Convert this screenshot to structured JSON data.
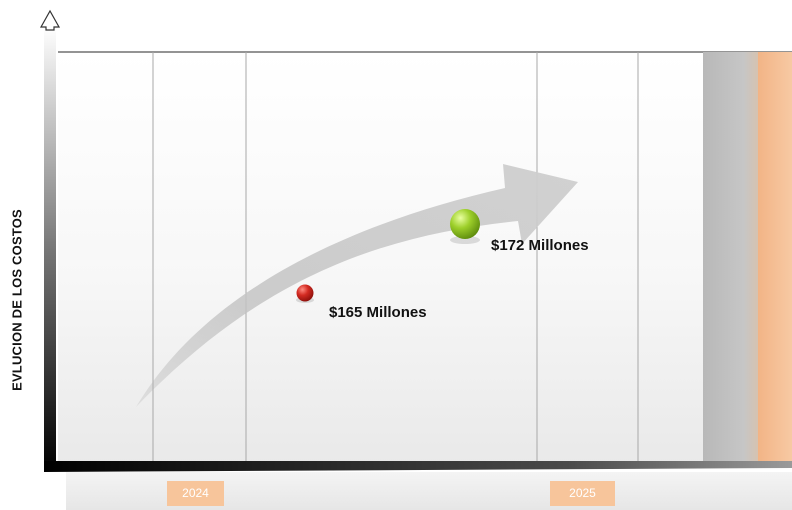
{
  "diagram": {
    "y_axis_label": "EVLUCION DE LOS COSTOS",
    "years": [
      "2024",
      "2025"
    ],
    "points": [
      {
        "label": "$165 Millones",
        "color": "#c0211c"
      },
      {
        "label": "$172 Millones",
        "color": "#8cc21e"
      }
    ]
  },
  "colors": {
    "accent_band": "#f5b07a",
    "gray_band": "#bdbdbd",
    "arrow": "#c8c8c8"
  }
}
